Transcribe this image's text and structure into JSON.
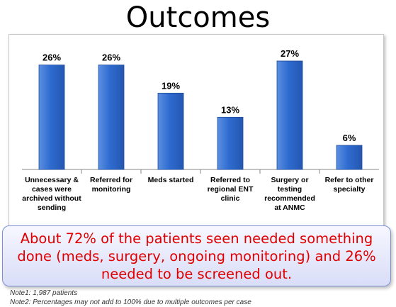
{
  "slide": {
    "title": "Outcomes",
    "callout": "About 72% of the patients seen needed something done (meds, surgery, ongoing monitoring) and 26% needed to be screened out.",
    "note1": "Note1: 1,987 patients",
    "note2": "Note2: Percentages may not add to 100% due to multiple outcomes per case"
  },
  "chart_data": {
    "type": "bar",
    "categories": [
      [
        "Unnecessary &",
        "cases were",
        "archived without",
        "sending"
      ],
      [
        "Referred for",
        "monitoring"
      ],
      [
        "Meds started"
      ],
      [
        "Referred to",
        "regional ENT",
        "clinic"
      ],
      [
        "Surgery or",
        "testing",
        "recommended",
        "at ANMC"
      ],
      [
        "Refer to other",
        "specialty"
      ]
    ],
    "values": [
      26,
      26,
      19,
      13,
      27,
      6
    ],
    "value_labels": [
      "26%",
      "26%",
      "19%",
      "13%",
      "27%",
      "6%"
    ],
    "ylim": [
      0,
      30
    ],
    "grid": false,
    "colors": {
      "bar_top": "#5b8fe0",
      "bar_mid": "#2e6bd0",
      "bar_bottom": "#2457b0",
      "bar_edge": "#1e4c9c"
    }
  }
}
